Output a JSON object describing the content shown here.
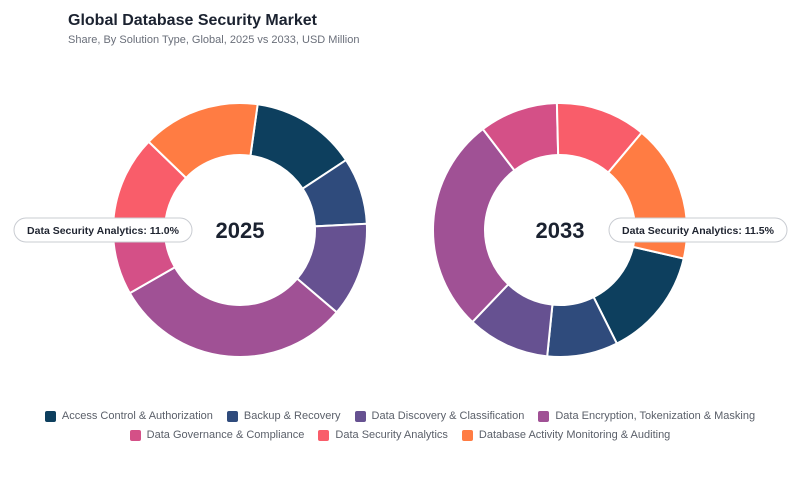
{
  "header": {
    "title": "Global Database Security Market",
    "subtitle": "Share, By Solution Type, Global, 2025 vs 2033, USD Million"
  },
  "chart_data": [
    {
      "type": "pie",
      "center_label": "2025",
      "callout": "Data Security Analytics: 11.0%",
      "categories": [
        "Access Control & Authorization",
        "Backup & Recovery",
        "Data Discovery & Classification",
        "Data Encryption, Tokenization & Masking",
        "Data Governance & Compliance",
        "Data Security Analytics",
        "Database Activity Monitoring & Auditing"
      ],
      "values": [
        13.5,
        8.5,
        12.0,
        30.5,
        9.5,
        11.0,
        15.0
      ]
    },
    {
      "type": "pie",
      "center_label": "2033",
      "callout": "Data Security Analytics: 11.5%",
      "categories": [
        "Access Control & Authorization",
        "Backup & Recovery",
        "Data Discovery & Classification",
        "Data Encryption, Tokenization & Masking",
        "Data Governance & Compliance",
        "Data Security Analytics",
        "Database Activity Monitoring & Auditing"
      ],
      "values": [
        14.0,
        9.0,
        10.5,
        27.5,
        10.0,
        11.5,
        17.5
      ]
    }
  ],
  "legend": {
    "items": [
      {
        "label": "Access Control & Authorization",
        "color": "#0d3f5e"
      },
      {
        "label": "Backup & Recovery",
        "color": "#2f4b7c"
      },
      {
        "label": "Data Discovery & Classification",
        "color": "#665191"
      },
      {
        "label": "Data Encryption, Tokenization & Masking",
        "color": "#a05195"
      },
      {
        "label": "Data Governance & Compliance",
        "color": "#d45087"
      },
      {
        "label": "Data Security Analytics",
        "color": "#f95d6a"
      },
      {
        "label": "Database Activity Monitoring & Auditing",
        "color": "#ff7c43"
      }
    ]
  }
}
